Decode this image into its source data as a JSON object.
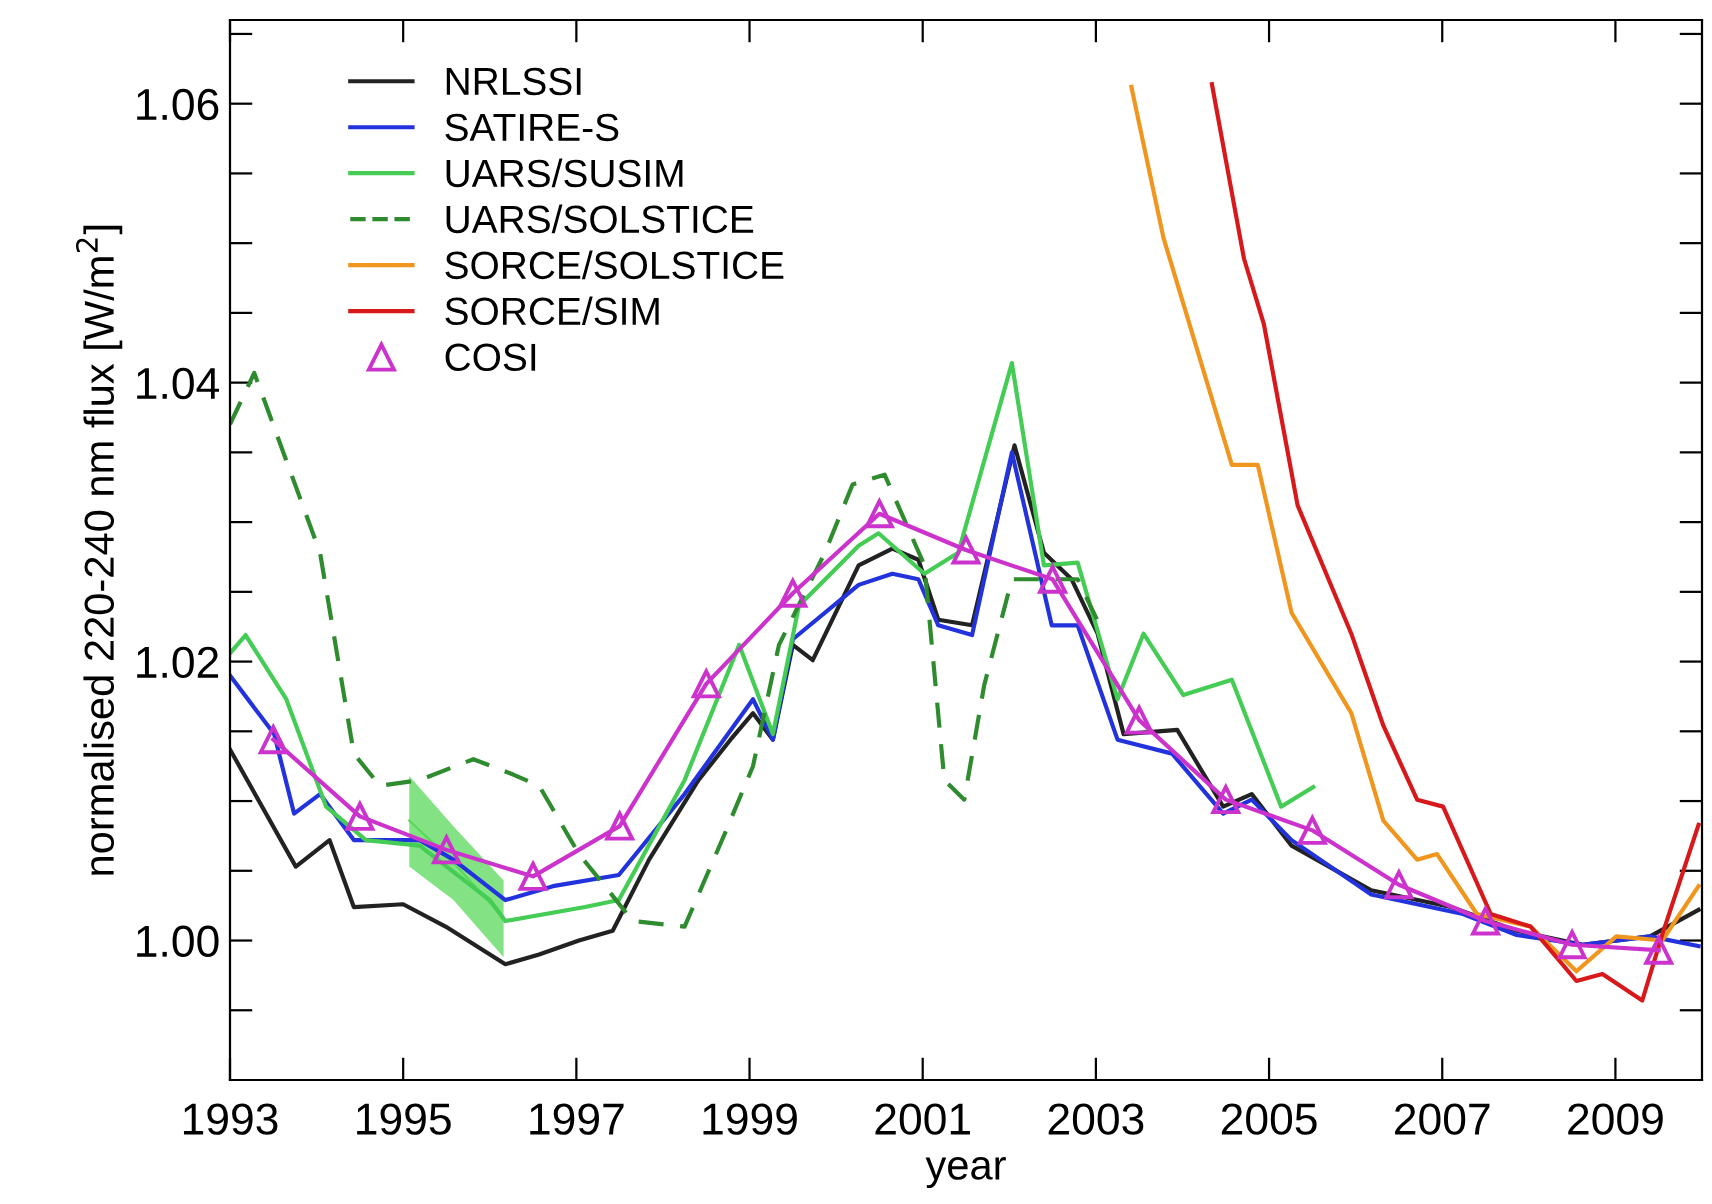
{
  "chart_data": {
    "type": "line",
    "xlabel": "year",
    "ylabel": "normalised 220-240 nm flux [W/m$^{2}$]",
    "xlim": [
      1993,
      2010
    ],
    "xticks": [
      1993,
      1995,
      1997,
      1999,
      2001,
      2003,
      2005,
      2007,
      2009
    ],
    "ylim": [
      0.99,
      1.066
    ],
    "yticks": [
      {
        "value": 0.995,
        "label": null
      },
      {
        "value": 1.0,
        "label": "1.00"
      },
      {
        "value": 1.005,
        "label": null
      },
      {
        "value": 1.01,
        "label": null
      },
      {
        "value": 1.015,
        "label": null
      },
      {
        "value": 1.02,
        "label": "1.02"
      },
      {
        "value": 1.025,
        "label": null
      },
      {
        "value": 1.03,
        "label": null
      },
      {
        "value": 1.035,
        "label": null
      },
      {
        "value": 1.04,
        "label": "1.04"
      },
      {
        "value": 1.045,
        "label": null
      },
      {
        "value": 1.05,
        "label": null
      },
      {
        "value": 1.055,
        "label": null
      },
      {
        "value": 1.06,
        "label": "1.06"
      },
      {
        "value": 1.065,
        "label": null
      }
    ],
    "grid": false,
    "legend": "top left",
    "series": [
      {
        "type": "line",
        "color": "#5ad85a",
        "x": [
          1995.07,
          1995.58,
          1996.16
        ],
        "values": [
          1.0086,
          1.0056,
          1.0016
        ],
        "lower": [
          1.0053,
          1.0029,
          0.9988
        ],
        "upper": [
          1.0118,
          1.0082,
          1.0043
        ]
      },
      {
        "name": "NRLSSI",
        "color": "#222222",
        "x": [
          1993.0,
          1993.76,
          1994.15,
          1994.43,
          1995.0,
          1995.49,
          1996.18,
          1996.57,
          1997.03,
          1997.42,
          1997.84,
          1998.41,
          1998.78,
          1999.04,
          1999.27,
          1999.5,
          1999.73,
          2000.26,
          2000.65,
          2000.95,
          2001.18,
          2001.57,
          2002.06,
          2002.4,
          2002.72,
          2003.02,
          2003.32,
          2003.94,
          2004.47,
          2004.8,
          2005.26,
          2006.18,
          2007.1,
          2007.86,
          2008.62,
          2009.4,
          2009.96
        ],
        "values": [
          1.0137,
          1.0053,
          1.0072,
          1.0024,
          1.0026,
          1.001,
          0.9983,
          0.999,
          1.0,
          1.0007,
          1.0058,
          1.0115,
          1.0144,
          1.0163,
          1.0144,
          1.0212,
          1.0201,
          1.0269,
          1.0281,
          1.0273,
          1.023,
          1.0226,
          1.0355,
          1.0278,
          1.0259,
          1.022,
          1.0148,
          1.0151,
          1.0096,
          1.0105,
          1.0068,
          1.0036,
          1.0024,
          1.0007,
          0.9997,
          1.0003,
          1.0022
        ],
        "line_style": "solid"
      },
      {
        "name": "SATIRE-S",
        "color": "#2233dd",
        "x": [
          1993.0,
          1993.51,
          1993.74,
          1994.04,
          1994.43,
          1995.19,
          1995.58,
          1996.18,
          1996.73,
          1997.49,
          1998.25,
          1999.04,
          1999.27,
          1999.5,
          2000.26,
          2000.65,
          2000.95,
          2001.18,
          2001.57,
          2002.03,
          2002.49,
          2002.79,
          2003.25,
          2003.88,
          2004.47,
          2004.8,
          2005.26,
          2006.18,
          2007.24,
          2007.86,
          2008.62,
          2009.4,
          2009.96
        ],
        "values": [
          1.019,
          1.0148,
          1.0091,
          1.0105,
          1.0072,
          1.0072,
          1.0058,
          1.0029,
          1.0039,
          1.0047,
          1.0105,
          1.0173,
          1.0144,
          1.0216,
          1.0255,
          1.0263,
          1.0259,
          1.0226,
          1.0219,
          1.035,
          1.0226,
          1.0226,
          1.0144,
          1.0134,
          1.0091,
          1.0101,
          1.0072,
          1.0033,
          1.0019,
          1.0004,
          0.9997,
          1.0003,
          0.9996
        ],
        "line_style": "solid"
      },
      {
        "name": "UARS/SUSIM",
        "color": "#44cc55",
        "x": [
          1993.0,
          1993.18,
          1993.65,
          1994.11,
          1994.57,
          1995.19,
          1996.0,
          1996.18,
          1997.1,
          1997.49,
          1998.25,
          1998.88,
          1999.27,
          1999.57,
          2000.26,
          2000.49,
          2001.02,
          2001.41,
          2002.03,
          2002.4,
          2002.79,
          2003.25,
          2003.55,
          2004.01,
          2004.57,
          2005.14,
          2005.51
        ],
        "values": [
          1.0206,
          1.0219,
          1.0173,
          1.0096,
          1.0072,
          1.0068,
          1.0029,
          1.0014,
          1.0024,
          1.0029,
          1.0115,
          1.0212,
          1.0148,
          1.024,
          1.0283,
          1.0292,
          1.0263,
          1.0278,
          1.0414,
          1.0269,
          1.0271,
          1.0173,
          1.022,
          1.0176,
          1.0187,
          1.0096,
          1.011
        ],
        "line_style": "solid"
      },
      {
        "name": "UARS/SOLSTICE",
        "color": "#2e8b2e",
        "x": [
          1993.0,
          1993.28,
          1994.04,
          1994.43,
          1994.73,
          1995.19,
          1995.81,
          1996.27,
          1996.57,
          1997.03,
          1997.33,
          1997.65,
          1998.25,
          1998.71,
          1999.04,
          1999.34,
          1999.87,
          2000.19,
          2000.56,
          2001.02,
          2001.25,
          2001.48,
          2001.71,
          2002.03,
          2002.79,
          2003.09
        ],
        "values": [
          1.037,
          1.0407,
          1.0278,
          1.0134,
          1.0111,
          1.0115,
          1.013,
          1.0119,
          1.0111,
          1.0062,
          1.0039,
          1.0014,
          1.001,
          1.0076,
          1.0125,
          1.0212,
          1.0278,
          1.0327,
          1.0334,
          1.0269,
          1.0115,
          1.0101,
          1.0183,
          1.0259,
          1.0259,
          1.022
        ],
        "line_style": "dashed"
      },
      {
        "name": "SORCE/SOLSTICE",
        "color": "#f0961e",
        "x": [
          2003.41,
          2003.78,
          2004.57,
          2004.87,
          2005.26,
          2005.95,
          2006.32,
          2006.71,
          2006.94,
          2007.4,
          2008.02,
          2008.55,
          2009.01,
          2009.54,
          2009.96
        ],
        "values": [
          1.0612,
          1.0504,
          1.0341,
          1.0341,
          1.0235,
          1.0163,
          1.0086,
          1.0058,
          1.0062,
          1.0019,
          1.001,
          0.9978,
          1.0003,
          1.0,
          1.0039
        ],
        "line_style": "solid"
      },
      {
        "name": "SORCE/SIM",
        "color": "#d7191c",
        "x": [
          2004.34,
          2004.71,
          2004.94,
          2005.33,
          2005.95,
          2006.32,
          2006.71,
          2007.01,
          2007.56,
          2008.02,
          2008.55,
          2008.85,
          2009.31,
          2009.54,
          2009.96
        ],
        "values": [
          1.0614,
          1.0489,
          1.0442,
          1.0312,
          1.022,
          1.0154,
          1.0101,
          1.0096,
          1.0019,
          1.001,
          0.9971,
          0.9976,
          0.9957,
          1.0004,
          1.0083
        ],
        "line_style": "solid"
      },
      {
        "name": "COSI",
        "color": "#cc33cc",
        "marker": "triangle",
        "line_style": "solid",
        "x": [
          1993.5,
          1994.5,
          1995.5,
          1996.5,
          1997.5,
          1998.5,
          1999.5,
          2000.5,
          2001.5,
          2002.5,
          2003.5,
          2004.5,
          2005.5,
          2006.5,
          2007.5,
          2008.5,
          2009.5
        ],
        "values": [
          1.0144,
          1.0089,
          1.0065,
          1.0046,
          1.0082,
          1.0184,
          1.0249,
          1.0306,
          1.028,
          1.0259,
          1.0158,
          1.0101,
          1.0079,
          1.004,
          1.0014,
          0.9997,
          0.9993
        ]
      }
    ]
  }
}
